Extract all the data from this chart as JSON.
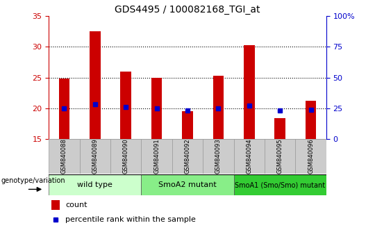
{
  "title": "GDS4495 / 100082168_TGI_at",
  "samples": [
    "GSM840088",
    "GSM840089",
    "GSM840090",
    "GSM840091",
    "GSM840092",
    "GSM840093",
    "GSM840094",
    "GSM840095",
    "GSM840096"
  ],
  "counts": [
    24.8,
    32.5,
    26.0,
    25.0,
    19.5,
    25.3,
    30.3,
    18.4,
    21.2
  ],
  "percentile_ranks_pct": [
    25,
    28,
    26,
    25,
    23,
    25,
    27,
    23,
    24
  ],
  "ylim_left": [
    15,
    35
  ],
  "ylim_right": [
    0,
    100
  ],
  "yticks_left": [
    15,
    20,
    25,
    30,
    35
  ],
  "yticks_right": [
    0,
    25,
    50,
    75,
    100
  ],
  "bar_color": "#cc0000",
  "dot_color": "#0000cc",
  "groups": [
    {
      "label": "wild type",
      "start": 0,
      "end": 3,
      "color": "#ccffcc"
    },
    {
      "label": "SmoA2 mutant",
      "start": 3,
      "end": 6,
      "color": "#88ee88"
    },
    {
      "label": "SmoA1 (Smo/Smo) mutant",
      "start": 6,
      "end": 9,
      "color": "#33cc33"
    }
  ],
  "legend_count_label": "count",
  "legend_percentile_label": "percentile rank within the sample",
  "genotype_label": "genotype/variation",
  "bg_color": "#ffffff",
  "ax_label_color_left": "#cc0000",
  "ax_label_color_right": "#0000cc"
}
